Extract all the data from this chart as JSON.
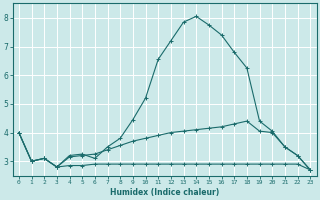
{
  "xlabel": "Humidex (Indice chaleur)",
  "background_color": "#cce9e9",
  "grid_color": "#ffffff",
  "line_color": "#1a6b6b",
  "xlim": [
    -0.5,
    23.5
  ],
  "ylim": [
    2.5,
    8.5
  ],
  "yticks": [
    3,
    4,
    5,
    6,
    7,
    8
  ],
  "xticks": [
    0,
    1,
    2,
    3,
    4,
    5,
    6,
    7,
    8,
    9,
    10,
    11,
    12,
    13,
    14,
    15,
    16,
    17,
    18,
    19,
    20,
    21,
    22,
    23
  ],
  "line1_x": [
    0,
    1,
    2,
    3,
    4,
    5,
    6,
    7,
    8,
    9,
    10,
    11,
    12,
    13,
    14,
    15,
    16,
    17,
    18,
    19,
    20,
    21,
    22,
    23
  ],
  "line1_y": [
    4.0,
    3.0,
    3.1,
    2.8,
    3.15,
    3.2,
    3.25,
    3.4,
    3.55,
    3.7,
    3.8,
    3.9,
    4.0,
    4.05,
    4.1,
    4.15,
    4.2,
    4.3,
    4.4,
    4.05,
    4.0,
    3.5,
    3.2,
    2.7
  ],
  "line2_x": [
    0,
    1,
    2,
    3,
    4,
    5,
    6,
    7,
    8,
    9,
    10,
    11,
    12,
    13,
    14,
    15,
    16,
    17,
    18,
    19,
    20,
    21,
    22,
    23
  ],
  "line2_y": [
    4.0,
    3.0,
    3.1,
    2.8,
    2.85,
    2.85,
    2.9,
    2.9,
    2.9,
    2.9,
    2.9,
    2.9,
    2.9,
    2.9,
    2.9,
    2.9,
    2.9,
    2.9,
    2.9,
    2.9,
    2.9,
    2.9,
    2.9,
    2.7
  ],
  "line3_x": [
    0,
    1,
    2,
    3,
    4,
    5,
    6,
    7,
    8,
    9,
    10,
    11,
    12,
    13,
    14,
    15,
    16,
    17,
    18,
    19,
    20,
    21,
    22,
    23
  ],
  "line3_y": [
    4.0,
    3.0,
    3.1,
    2.8,
    3.2,
    3.25,
    3.1,
    3.5,
    3.8,
    4.45,
    5.2,
    6.55,
    7.2,
    7.85,
    8.05,
    7.75,
    7.4,
    6.8,
    6.25,
    4.4,
    4.05,
    3.5,
    3.2,
    2.7
  ]
}
